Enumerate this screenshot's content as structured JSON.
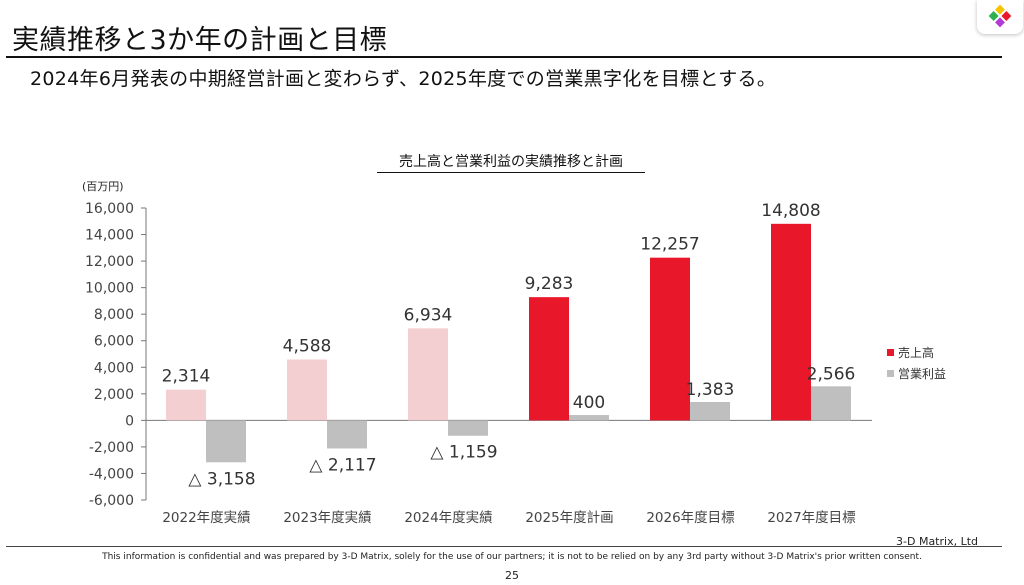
{
  "header": {
    "title": "実績推移と3か年の計画と目標",
    "subtitle": "2024年6月発表の中期経営計画と変わらず、2025年度での営業黒字化を目標とする。"
  },
  "footer": {
    "company": "3-D Matrix, Ltd",
    "disclaimer": "This information is confidential and was prepared by 3-D Matrix, solely for the use of our partners; it is not to be relied on by any 3rd party without 3-D Matrix's prior written consent.",
    "page_number": "25"
  },
  "colors": {
    "sales_actual": "#f4cfd1",
    "sales_plan": "#e8172a",
    "operating_profit": "#bfbfbf",
    "axis": "#777777"
  },
  "chart_data": {
    "type": "bar",
    "title": "売上高と営業利益の実績推移と計画",
    "ylabel": "(百万円)",
    "ylim": [
      -6000,
      16000
    ],
    "yticks": [
      16000,
      14000,
      12000,
      10000,
      8000,
      6000,
      4000,
      2000,
      0,
      -2000,
      -4000,
      -6000
    ],
    "ytick_labels": [
      "16,000",
      "14,000",
      "12,000",
      "10,000",
      "8,000",
      "6,000",
      "4,000",
      "2,000",
      "0",
      "-2,000",
      "-4,000",
      "-6,000"
    ],
    "categories": [
      "2022年度実績",
      "2023年度実績",
      "2024年度実績",
      "2025年度計画",
      "2026年度目標",
      "2027年度目標"
    ],
    "series": [
      {
        "name": "売上高",
        "values": [
          2314,
          4588,
          6934,
          9283,
          12257,
          14808
        ],
        "labels": [
          "2,314",
          "4,588",
          "6,934",
          "9,283",
          "12,257",
          "14,808"
        ]
      },
      {
        "name": "営業利益",
        "values": [
          -3158,
          -2117,
          -1159,
          400,
          1383,
          2566
        ],
        "labels": [
          "△ 3,158",
          "△ 2,117",
          "△ 1,159",
          "400",
          "1,383",
          "2,566"
        ]
      }
    ],
    "legend": "right",
    "grid": false
  }
}
